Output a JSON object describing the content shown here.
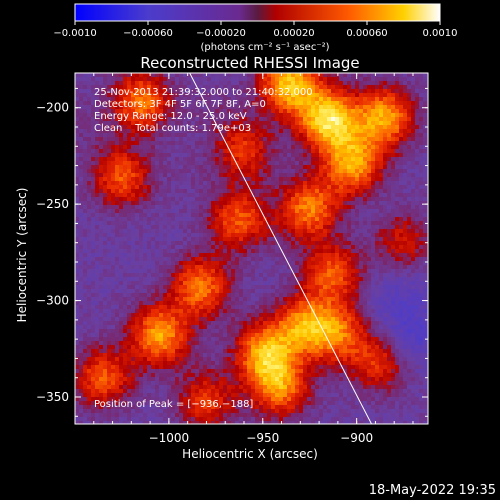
{
  "chart_data": {
    "type": "heatmap",
    "title": "Reconstructed RHESSI Image",
    "xlabel": "Heliocentric X (arcsec)",
    "ylabel": "Heliocentric Y (arcsec)",
    "xlim": [
      -1050,
      -862
    ],
    "ylim": [
      -364,
      -182
    ],
    "xticks": [
      -1000,
      -950,
      -900
    ],
    "xtick_labels": [
      "−1000",
      "−950",
      "−900"
    ],
    "yticks": [
      -200,
      -250,
      -300,
      -350
    ],
    "ytick_labels": [
      "−200",
      "−250",
      "−300",
      "−350"
    ],
    "colorbar": {
      "range": [
        -0.001,
        0.001
      ],
      "ticks": [
        -0.001,
        -0.0006,
        -0.0002,
        0.0002,
        0.0006,
        0.001
      ],
      "tick_labels": [
        "−0.0010",
        "−0.00060",
        "−0.00020",
        "0.00020",
        "0.00060",
        "0.0010"
      ],
      "units_label": "(photons cm⁻² s⁻¹ asec⁻²)"
    },
    "annotations": [
      "25-Nov-2013 21:39:32.000 to 21:40:32.000",
      "Detectors: 3F 4F 5F 6F 7F 8F, A=0",
      "Energy Range: 12.0 - 25.0 keV",
      "Clean    Total counts: 1.79e+03"
    ],
    "peak_label": "Position of Peak = [−936,−188]",
    "peak": [
      -936,
      -188
    ],
    "limb_line": {
      "x": [
        -990,
        -891
      ],
      "y": [
        -180,
        -366
      ]
    },
    "hot_regions": [
      {
        "x": -1015,
        "y": -197,
        "level": 0.0005
      },
      {
        "x": -1025,
        "y": -236,
        "level": 0.0004
      },
      {
        "x": -1005,
        "y": -318,
        "level": 0.0006
      },
      {
        "x": -983,
        "y": -293,
        "level": 0.0005
      },
      {
        "x": -963,
        "y": -258,
        "level": 0.0004
      },
      {
        "x": -949,
        "y": -327,
        "level": 0.0006
      },
      {
        "x": -941,
        "y": -345,
        "level": 0.0005
      },
      {
        "x": -936,
        "y": -188,
        "level": 0.0007
      },
      {
        "x": -915,
        "y": -206,
        "level": 0.0008
      },
      {
        "x": -902,
        "y": -229,
        "level": 0.0006
      },
      {
        "x": -885,
        "y": -205,
        "level": 0.0006
      },
      {
        "x": -925,
        "y": -252,
        "level": 0.0005
      },
      {
        "x": -913,
        "y": -286,
        "level": 0.0004
      },
      {
        "x": -928,
        "y": -313,
        "level": 0.0005
      },
      {
        "x": -910,
        "y": -317,
        "level": 0.0004
      },
      {
        "x": -888,
        "y": -332,
        "level": 0.0003
      },
      {
        "x": -1035,
        "y": -340,
        "level": 0.0004
      },
      {
        "x": -980,
        "y": -352,
        "level": 0.0003
      },
      {
        "x": -960,
        "y": -222,
        "level": 0.0003
      },
      {
        "x": -875,
        "y": -270,
        "level": 0.0002
      }
    ],
    "cold_regions": [
      {
        "x": -1030,
        "y": -262,
        "level": -0.0002
      },
      {
        "x": -1010,
        "y": -282,
        "level": -0.0002
      },
      {
        "x": -988,
        "y": -232,
        "level": -0.00015
      },
      {
        "x": -940,
        "y": -262,
        "level": -0.00015
      },
      {
        "x": -955,
        "y": -295,
        "level": -0.0002
      },
      {
        "x": -900,
        "y": -263,
        "level": -0.0002
      },
      {
        "x": -880,
        "y": -300,
        "level": -0.0004
      },
      {
        "x": -870,
        "y": -320,
        "level": -0.0005
      },
      {
        "x": -860,
        "y": -290,
        "level": -0.0003
      },
      {
        "x": -975,
        "y": -200,
        "level": -0.0001
      },
      {
        "x": -1045,
        "y": -210,
        "level": -0.0001
      },
      {
        "x": -920,
        "y": -355,
        "level": -0.0002
      },
      {
        "x": -868,
        "y": -355,
        "level": -0.0002
      }
    ]
  },
  "timestamp": "18-May-2022 19:35"
}
